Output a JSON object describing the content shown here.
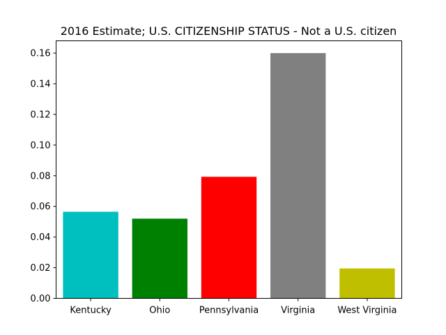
{
  "chart_data": {
    "type": "bar",
    "title": "2016 Estimate; U.S. CITIZENSHIP STATUS - Not a U.S. citizen",
    "xlabel": "",
    "ylabel": "",
    "categories": [
      "Kentucky",
      "Ohio",
      "Pennsylvania",
      "Virginia",
      "West Virginia"
    ],
    "values": [
      0.0565,
      0.052,
      0.0793,
      0.16,
      0.0195
    ],
    "colors": [
      "#00bfbf",
      "#008000",
      "#ff0000",
      "#808080",
      "#bfbf00"
    ],
    "ylim": [
      0,
      0.168
    ],
    "yticks": [
      "0.00",
      "0.02",
      "0.04",
      "0.06",
      "0.08",
      "0.10",
      "0.12",
      "0.14",
      "0.16"
    ],
    "grid": false,
    "legend": "none"
  }
}
